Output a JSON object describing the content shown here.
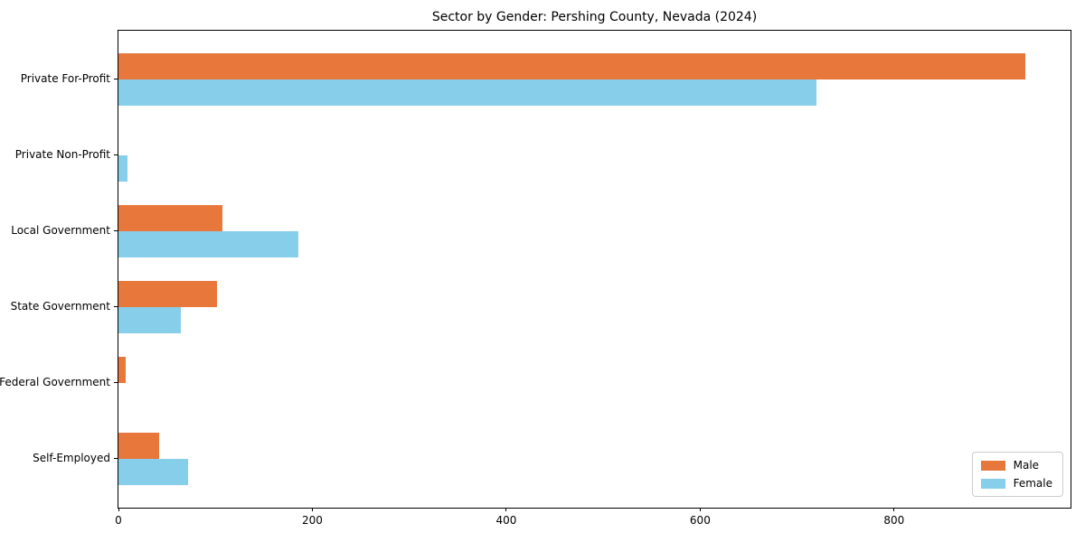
{
  "chart_data": {
    "type": "bar",
    "orientation": "horizontal",
    "title": "Sector by Gender: Pershing County, Nevada (2024)",
    "xlabel": "",
    "ylabel": "",
    "categories": [
      "Private For-Profit",
      "Private Non-Profit",
      "Local Government",
      "State Government",
      "Federal Government",
      "Self-Employed"
    ],
    "series": [
      {
        "name": "Male",
        "color": "#e8773c",
        "values": [
          935,
          0,
          107,
          102,
          7,
          42
        ]
      },
      {
        "name": "Female",
        "color": "#87ceeb",
        "values": [
          720,
          9,
          186,
          64,
          0,
          72
        ]
      }
    ],
    "xlim": [
      0,
      982
    ],
    "xticks": [
      0,
      200,
      400,
      600,
      800
    ],
    "grid": false,
    "legend": {
      "position": "lower right",
      "entries": [
        "Male",
        "Female"
      ]
    }
  }
}
